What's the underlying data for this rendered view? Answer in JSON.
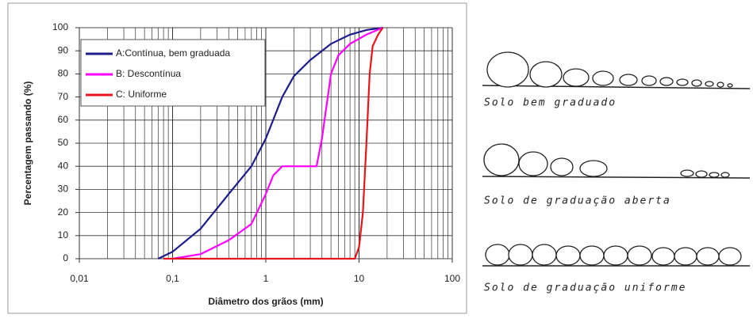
{
  "chart_data": {
    "type": "line",
    "xlabel": "Diâmetro dos grãos (mm)",
    "ylabel": "Percentagem passando (%)",
    "log_x": true,
    "grid": true,
    "legend": "upper left",
    "xlim": [
      0.01,
      100
    ],
    "xticks": [
      {
        "value": 0.01,
        "label": "0,01"
      },
      {
        "value": 0.1,
        "label": "0,1"
      },
      1,
      10,
      100
    ],
    "xminor": [
      0.02,
      0.03,
      0.04,
      0.05,
      0.06,
      0.07,
      0.08,
      0.09,
      0.2,
      0.3,
      0.4,
      0.5,
      0.6,
      0.7,
      0.8,
      0.9,
      2,
      3,
      4,
      5,
      6,
      7,
      8,
      9,
      20,
      30,
      40,
      50,
      60,
      70,
      80,
      90
    ],
    "ylim": [
      0,
      100
    ],
    "yticks": [
      0,
      10,
      20,
      30,
      40,
      50,
      60,
      70,
      80,
      90,
      100
    ],
    "series": [
      {
        "name": "A:Contínua, bem graduada",
        "color": "#1c1c8c",
        "x": [
          0.07,
          0.1,
          0.2,
          0.4,
          0.7,
          1,
          1.5,
          2,
          3,
          5,
          8,
          12,
          18
        ],
        "values": [
          0,
          3,
          13,
          28,
          40,
          52,
          70,
          79,
          86,
          93,
          97,
          99,
          100
        ]
      },
      {
        "name": "B: Descontínua",
        "color": "#ff00ff",
        "x": [
          0.1,
          0.2,
          0.4,
          0.7,
          1,
          1.2,
          1.5,
          3.5,
          4,
          5,
          6,
          8,
          12,
          18
        ],
        "values": [
          0,
          2,
          8,
          15,
          28,
          36,
          40,
          40,
          52,
          80,
          88,
          93,
          97,
          100
        ]
      },
      {
        "name": "C: Uniforme",
        "color": "#e8141c",
        "x": [
          0.08,
          9,
          10,
          11,
          12,
          13,
          14,
          16,
          18
        ],
        "values": [
          0,
          0,
          5,
          20,
          50,
          80,
          92,
          97,
          100
        ]
      }
    ]
  },
  "illustrations": [
    {
      "caption": "Solo bem graduado"
    },
    {
      "caption": "Solo de graduação aberta"
    },
    {
      "caption": "Solo de graduação uniforme"
    }
  ]
}
